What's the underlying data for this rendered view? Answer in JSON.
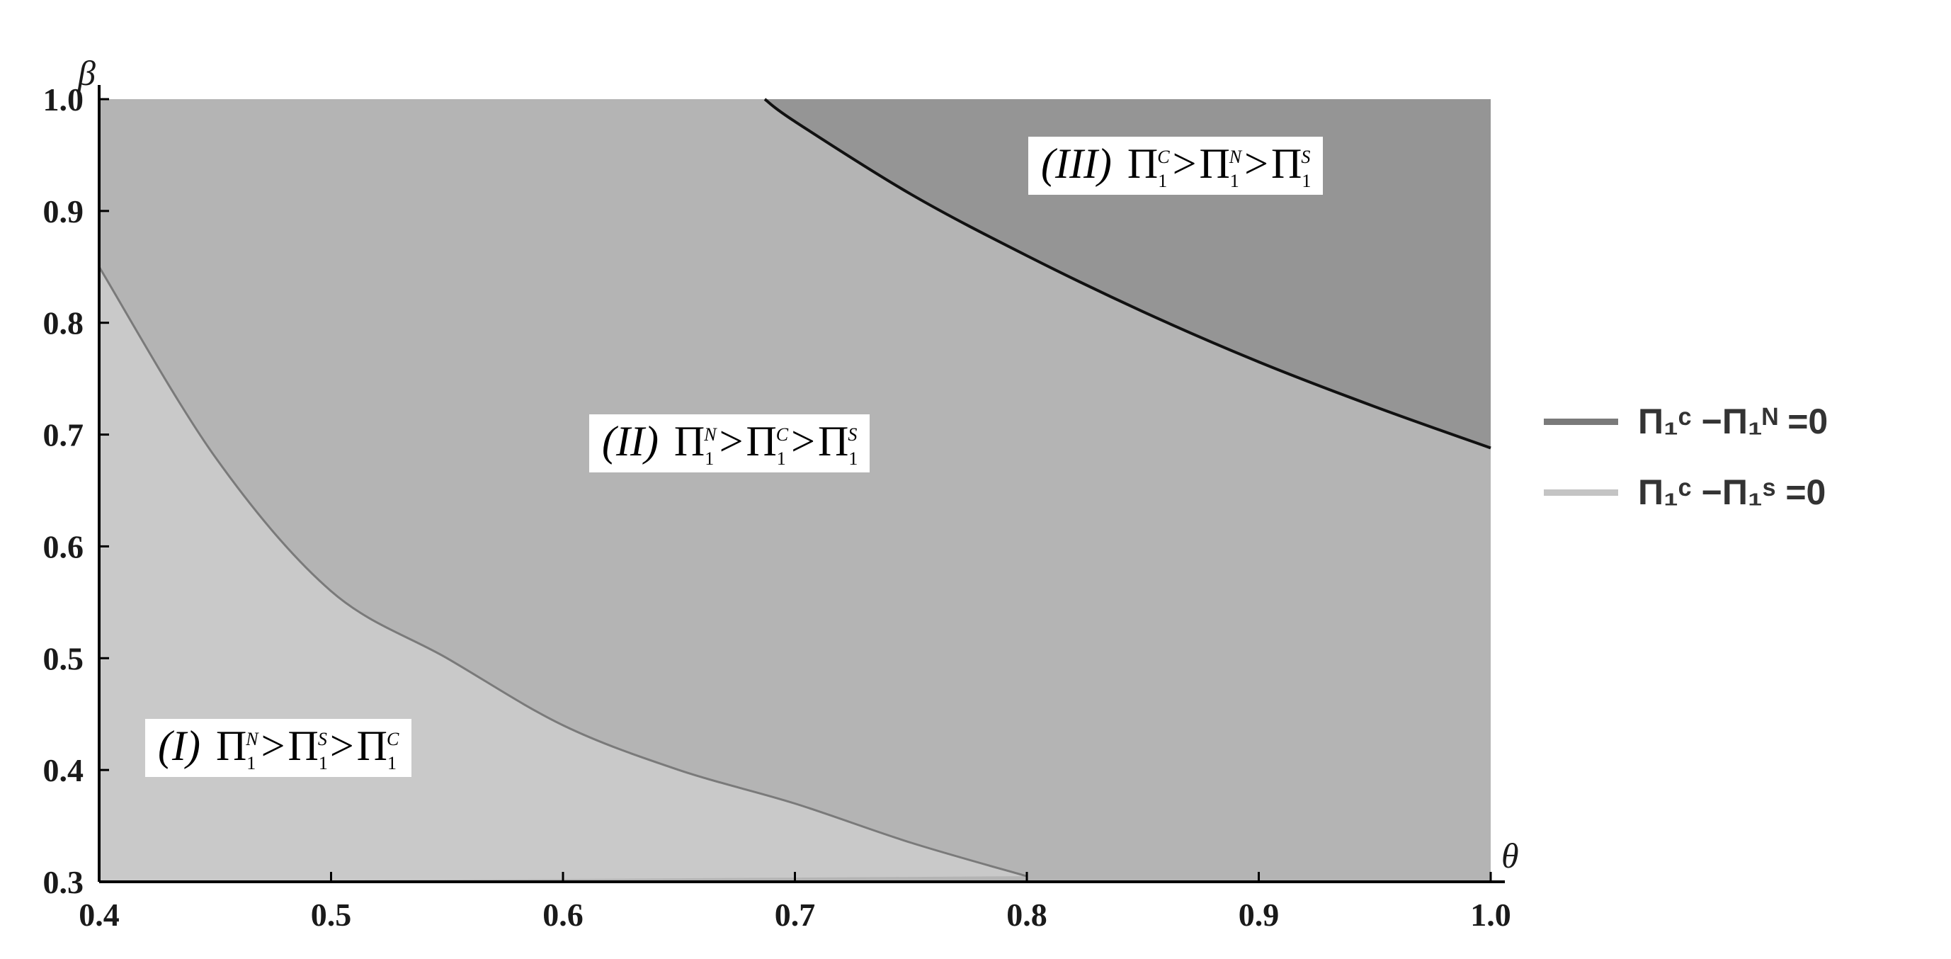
{
  "chart_data": {
    "type": "area",
    "xlabel": "θ",
    "ylabel": "β",
    "xlim": [
      0.4,
      1.0
    ],
    "ylim": [
      0.3,
      1.0
    ],
    "xticks": [
      "0.4",
      "0.5",
      "0.6",
      "0.7",
      "0.8",
      "0.9",
      "1.0"
    ],
    "yticks": [
      "0.3",
      "0.4",
      "0.5",
      "0.6",
      "0.7",
      "0.8",
      "0.9",
      "1.0"
    ],
    "series": [
      {
        "name": "Π1C − Π1N = 0",
        "legend_label": "Π₁ᶜ −Π₁ᴺ =0",
        "color": "#111111",
        "x": [
          0.687,
          0.7,
          0.75,
          0.8,
          0.85,
          0.9,
          0.95,
          1.0
        ],
        "y": [
          1.0,
          0.98,
          0.915,
          0.86,
          0.81,
          0.765,
          0.725,
          0.688
        ]
      },
      {
        "name": "Π1C − Π1S = 0",
        "legend_label": "Π₁ᶜ −Π₁ˢ =0",
        "color": "#7a7a7a",
        "x": [
          0.4,
          0.45,
          0.5,
          0.55,
          0.6,
          0.65,
          0.7,
          0.75,
          0.8
        ],
        "y": [
          0.85,
          0.68,
          0.56,
          0.5,
          0.44,
          0.4,
          0.37,
          0.335,
          0.305
        ]
      }
    ],
    "regions": [
      {
        "id": "I",
        "label": "(I)",
        "order": [
          "N",
          "S",
          "C"
        ],
        "fill": "#c9c9c9"
      },
      {
        "id": "II",
        "label": "(II)",
        "order": [
          "N",
          "C",
          "S"
        ],
        "fill": "#b4b4b4"
      },
      {
        "id": "III",
        "label": "(III)",
        "order": [
          "C",
          "N",
          "S"
        ],
        "fill": "#959595"
      }
    ],
    "legend_colors": [
      "#7a7a7a",
      "#c4c4c4"
    ],
    "legend_position": "right"
  }
}
